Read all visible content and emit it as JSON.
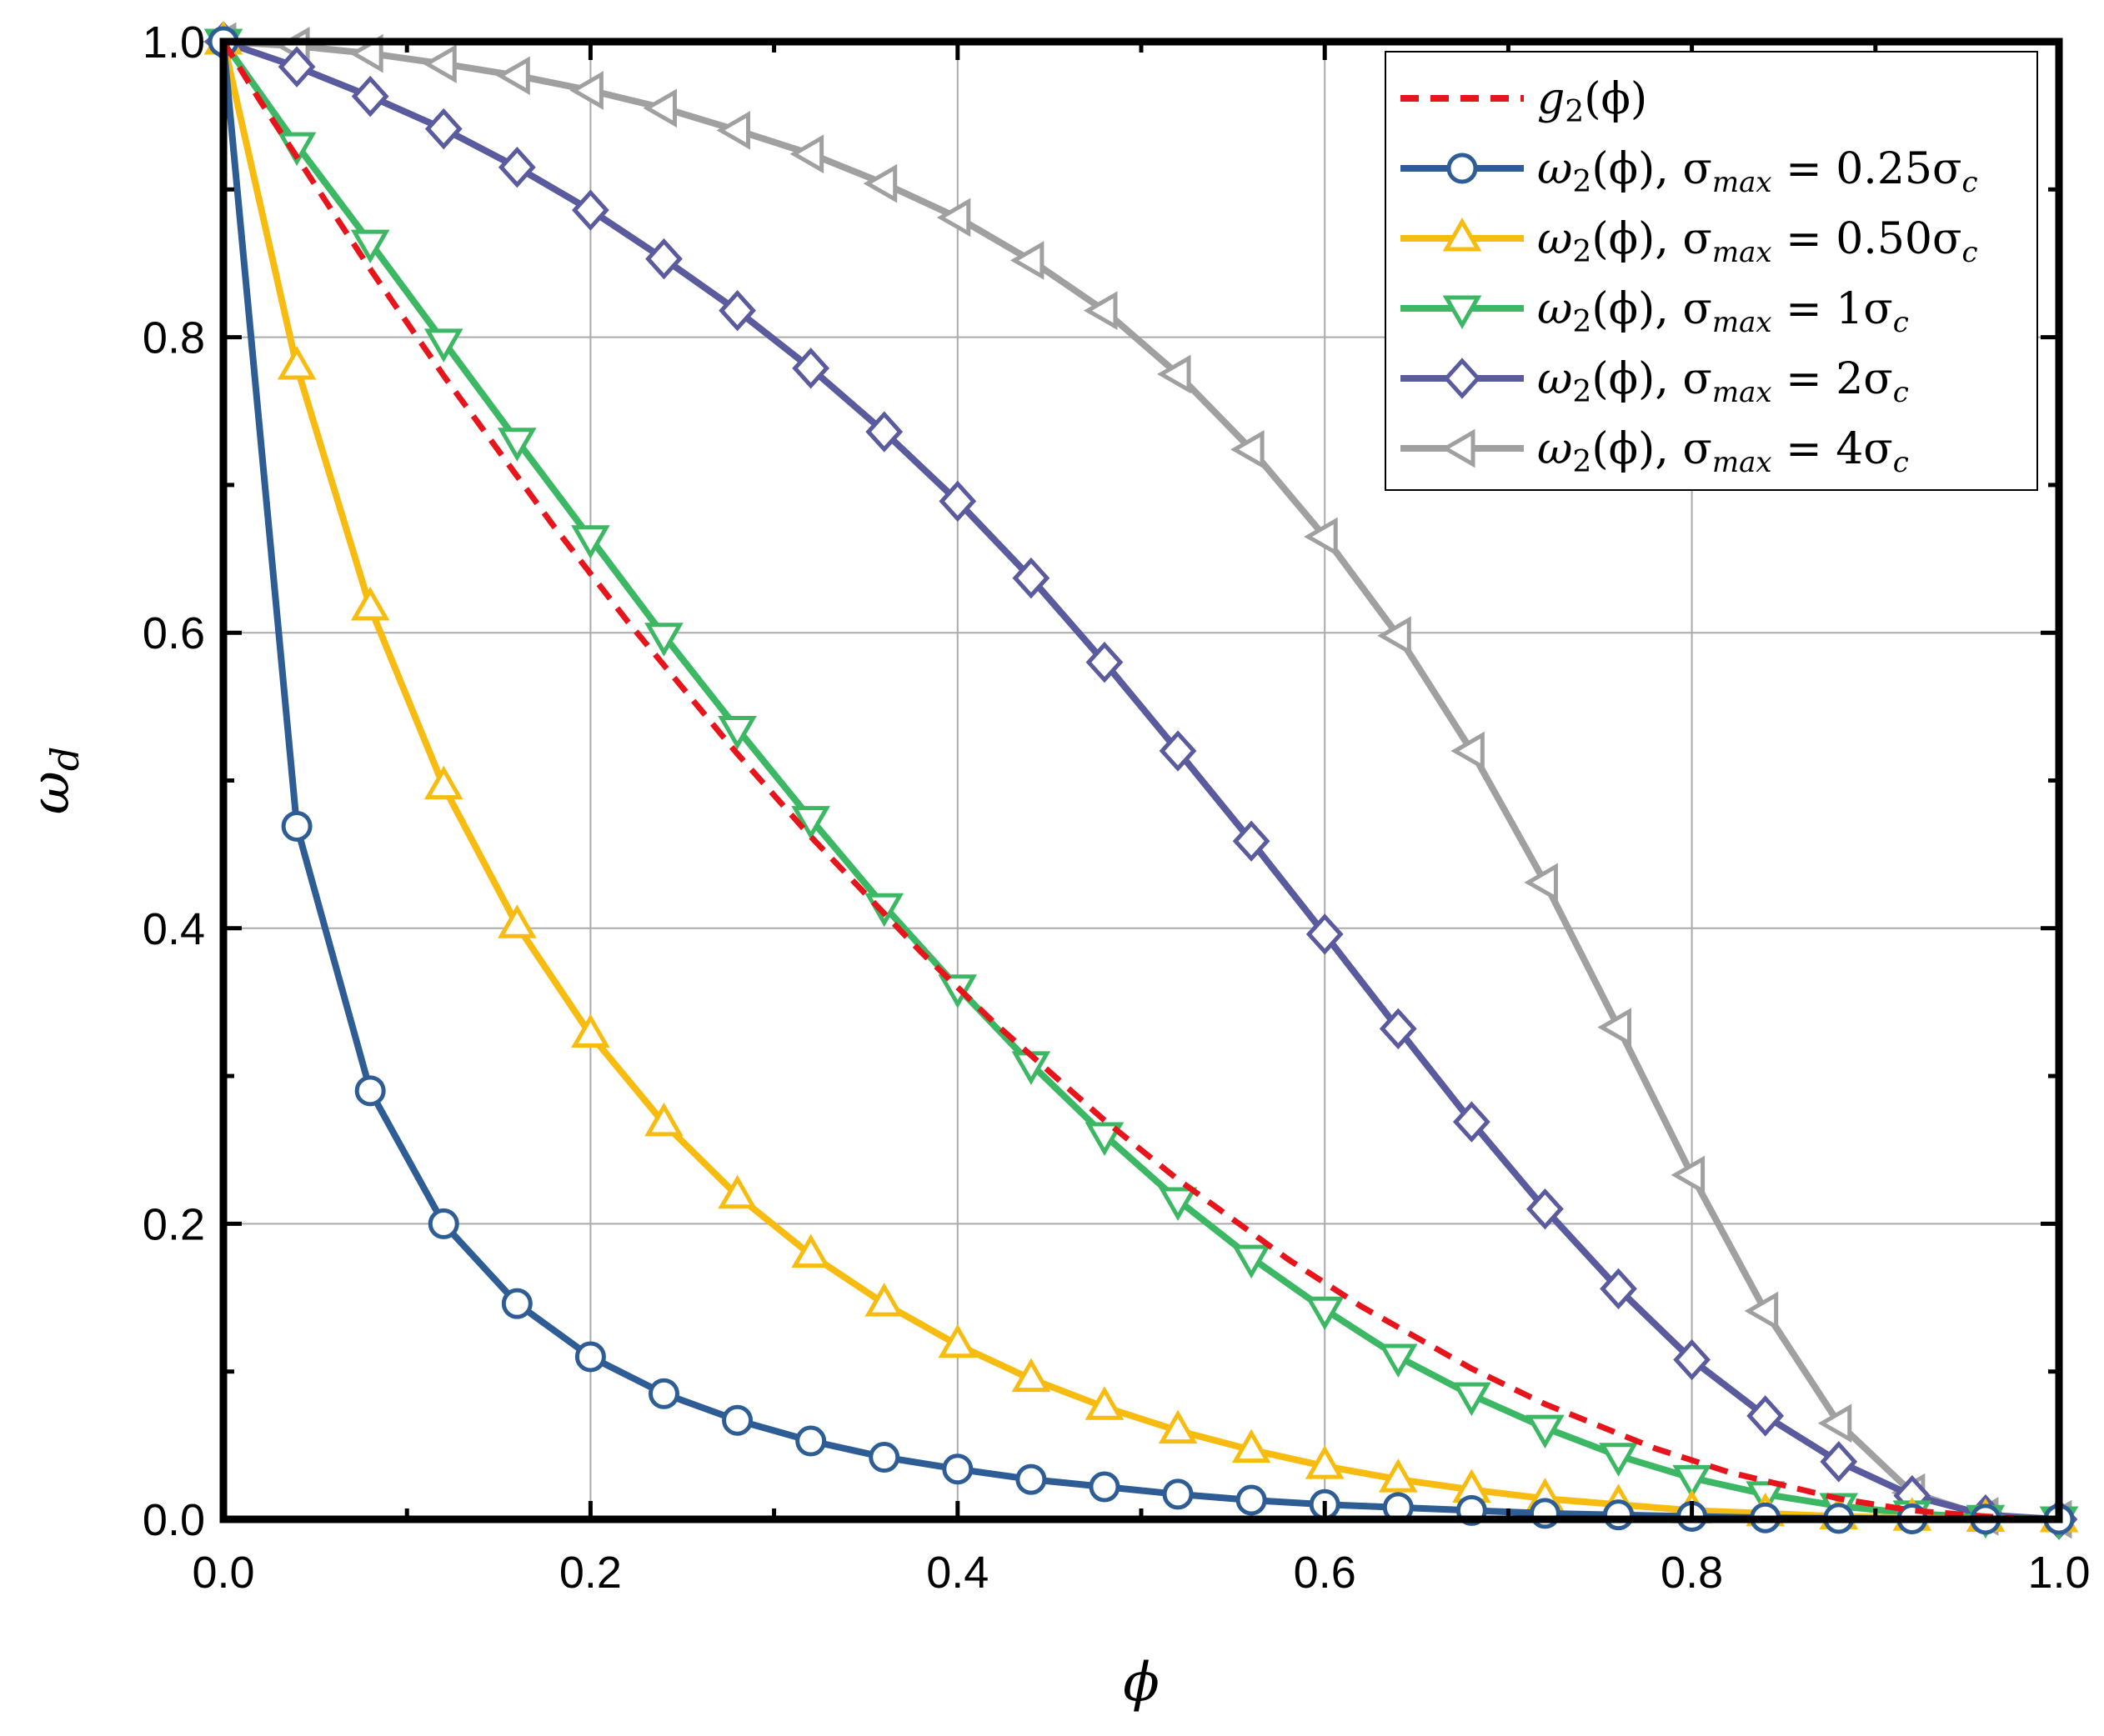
{
  "chart_data": {
    "type": "line",
    "xlabel": "ϕ",
    "ylabel": "ω",
    "ylabel_sub": "d",
    "xlim": [
      0,
      1
    ],
    "ylim": [
      0,
      1
    ],
    "x_ticks": [
      "0.0",
      "0.2",
      "0.4",
      "0.6",
      "0.8",
      "1.0"
    ],
    "y_ticks": [
      "0.0",
      "0.2",
      "0.4",
      "0.6",
      "0.8",
      "1.0"
    ],
    "grid": true,
    "legend_position": "top-right",
    "series": [
      {
        "name": "g₂(ϕ)",
        "color": "#e8141c",
        "style": "dashed",
        "marker": "none",
        "x": [
          0,
          0.02,
          0.04,
          0.06,
          0.08,
          0.1,
          0.12,
          0.14,
          0.16,
          0.18,
          0.2,
          0.22,
          0.24,
          0.26,
          0.28,
          0.3,
          0.32,
          0.34,
          0.36,
          0.38,
          0.4,
          0.42,
          0.44,
          0.46,
          0.48,
          0.5,
          0.52,
          0.54,
          0.56,
          0.58,
          0.6,
          0.62,
          0.64,
          0.66,
          0.68,
          0.7,
          0.72,
          0.74,
          0.76,
          0.78,
          0.8,
          0.82,
          0.84,
          0.86,
          0.88,
          0.9,
          0.92,
          0.94,
          0.96,
          0.98,
          1.0
        ],
        "y": [
          1,
          0.96,
          0.922,
          0.884,
          0.846,
          0.81,
          0.774,
          0.74,
          0.706,
          0.672,
          0.64,
          0.608,
          0.578,
          0.548,
          0.518,
          0.49,
          0.462,
          0.436,
          0.41,
          0.384,
          0.36,
          0.336,
          0.314,
          0.292,
          0.27,
          0.25,
          0.23,
          0.212,
          0.194,
          0.176,
          0.16,
          0.144,
          0.13,
          0.116,
          0.102,
          0.09,
          0.078,
          0.068,
          0.058,
          0.048,
          0.04,
          0.032,
          0.026,
          0.02,
          0.014,
          0.01,
          0.006,
          0.004,
          0.002,
          0.0004,
          0
        ]
      },
      {
        "name": "ω₂(ϕ), σmax = 0.25σc",
        "color": "#2e5d96",
        "marker": "circle",
        "x": [
          0,
          0.04,
          0.08,
          0.12,
          0.16,
          0.2,
          0.24,
          0.28,
          0.32,
          0.36,
          0.4,
          0.44,
          0.48,
          0.52,
          0.56,
          0.6,
          0.64,
          0.68,
          0.72,
          0.76,
          0.8,
          0.84,
          0.88,
          0.92,
          0.96,
          1.0
        ],
        "y": [
          1.0,
          0.469,
          0.29,
          0.2,
          0.146,
          0.11,
          0.085,
          0.067,
          0.053,
          0.042,
          0.034,
          0.027,
          0.022,
          0.017,
          0.013,
          0.01,
          0.008,
          0.006,
          0.004,
          0.003,
          0.002,
          0.001,
          0.0006,
          0.0003,
          0.0001,
          0
        ]
      },
      {
        "name": "ω₂(ϕ), σmax = 0.50σc",
        "color": "#f8bc10",
        "marker": "triangle-up",
        "x": [
          0,
          0.04,
          0.08,
          0.12,
          0.16,
          0.2,
          0.24,
          0.28,
          0.32,
          0.36,
          0.4,
          0.44,
          0.48,
          0.52,
          0.56,
          0.6,
          0.64,
          0.68,
          0.72,
          0.76,
          0.8,
          0.84,
          0.88,
          0.92,
          0.96,
          1.0
        ],
        "y": [
          1.0,
          0.78,
          0.617,
          0.496,
          0.402,
          0.328,
          0.268,
          0.219,
          0.179,
          0.146,
          0.118,
          0.095,
          0.076,
          0.06,
          0.047,
          0.036,
          0.027,
          0.02,
          0.014,
          0.01,
          0.006,
          0.004,
          0.002,
          0.001,
          0.0003,
          0
        ]
      },
      {
        "name": "ω₂(ϕ), σmax = 1σc",
        "color": "#3cb865",
        "marker": "triangle-down",
        "x": [
          0,
          0.04,
          0.08,
          0.12,
          0.16,
          0.2,
          0.24,
          0.28,
          0.32,
          0.36,
          0.4,
          0.44,
          0.48,
          0.52,
          0.56,
          0.6,
          0.64,
          0.68,
          0.72,
          0.76,
          0.8,
          0.84,
          0.88,
          0.92,
          0.96,
          1.0
        ],
        "y": [
          1.0,
          0.93,
          0.864,
          0.797,
          0.73,
          0.664,
          0.598,
          0.535,
          0.474,
          0.415,
          0.36,
          0.308,
          0.26,
          0.216,
          0.177,
          0.142,
          0.11,
          0.084,
          0.062,
          0.043,
          0.028,
          0.017,
          0.009,
          0.004,
          0.001,
          0
        ]
      },
      {
        "name": "ω₂(ϕ), σmax = 2σc",
        "color": "#5a5a9e",
        "marker": "diamond",
        "x": [
          0,
          0.04,
          0.08,
          0.12,
          0.16,
          0.2,
          0.24,
          0.28,
          0.32,
          0.36,
          0.4,
          0.44,
          0.48,
          0.52,
          0.56,
          0.6,
          0.64,
          0.68,
          0.72,
          0.76,
          0.8,
          0.84,
          0.88,
          0.92,
          0.96,
          1.0
        ],
        "y": [
          1.0,
          0.983,
          0.963,
          0.941,
          0.915,
          0.886,
          0.853,
          0.818,
          0.779,
          0.736,
          0.689,
          0.637,
          0.58,
          0.52,
          0.459,
          0.396,
          0.332,
          0.269,
          0.21,
          0.156,
          0.108,
          0.07,
          0.039,
          0.016,
          0.003,
          0
        ]
      },
      {
        "name": "ω₂(ϕ), σmax = 4σc",
        "color": "#a0a0a0",
        "marker": "triangle-left",
        "x": [
          0,
          0.04,
          0.08,
          0.12,
          0.16,
          0.2,
          0.24,
          0.28,
          0.32,
          0.36,
          0.4,
          0.44,
          0.48,
          0.52,
          0.56,
          0.6,
          0.64,
          0.68,
          0.72,
          0.76,
          0.8,
          0.84,
          0.88,
          0.92,
          0.96,
          1.0
        ],
        "y": [
          1.0,
          0.997,
          0.992,
          0.985,
          0.977,
          0.967,
          0.955,
          0.94,
          0.924,
          0.904,
          0.881,
          0.852,
          0.818,
          0.775,
          0.724,
          0.665,
          0.598,
          0.52,
          0.431,
          0.333,
          0.233,
          0.141,
          0.065,
          0.018,
          0.002,
          0
        ]
      }
    ]
  },
  "legend_labels": [
    {
      "main": "g",
      "sub": "2",
      "rest": "(ϕ)",
      "sigma_sub": "",
      "tail": ""
    },
    {
      "main": "ω",
      "sub": "2",
      "rest": "(ϕ), σ",
      "sigma_sub": "max",
      "tail": " = 0.25σ"
    },
    {
      "main": "ω",
      "sub": "2",
      "rest": "(ϕ), σ",
      "sigma_sub": "max",
      "tail": " = 0.50σ"
    },
    {
      "main": "ω",
      "sub": "2",
      "rest": "(ϕ), σ",
      "sigma_sub": "max",
      "tail": " = 1σ"
    },
    {
      "main": "ω",
      "sub": "2",
      "rest": "(ϕ), σ",
      "sigma_sub": "max",
      "tail": " = 2σ"
    },
    {
      "main": "ω",
      "sub": "2",
      "rest": "(ϕ), σ",
      "sigma_sub": "max",
      "tail": " = 4σ"
    }
  ],
  "legend_c_sub": "c"
}
